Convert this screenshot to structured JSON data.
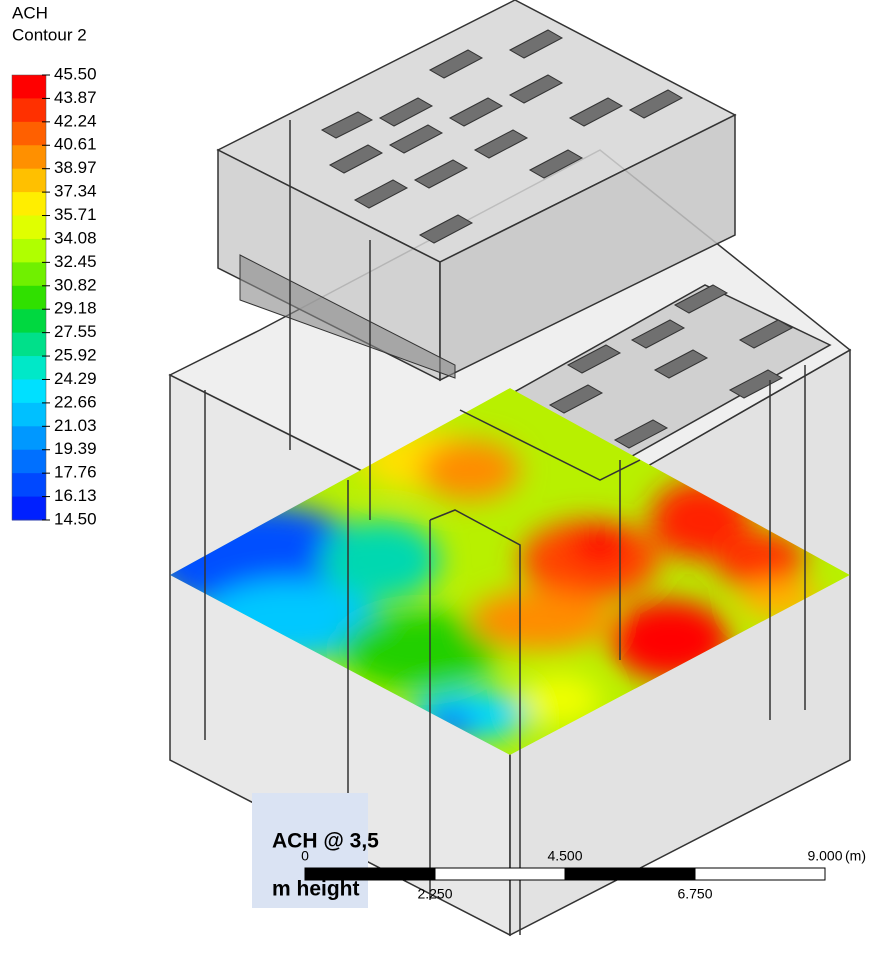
{
  "legend": {
    "title": "ACH",
    "subtitle": "Contour 2",
    "labels": [
      "45.50",
      "43.87",
      "42.24",
      "40.61",
      "38.97",
      "37.34",
      "35.71",
      "34.08",
      "32.45",
      "30.82",
      "29.18",
      "27.55",
      "25.92",
      "24.29",
      "22.66",
      "21.03",
      "19.39",
      "17.76",
      "16.13",
      "14.50"
    ]
  },
  "annotation": {
    "lines": [
      "ACH  @  3,5",
      "m height"
    ]
  },
  "scale_bar": {
    "top_labels": [
      "0",
      "4.500",
      "9.000"
    ],
    "unit": "(m)",
    "bottom_labels": [
      "2.250",
      "6.750"
    ]
  }
}
